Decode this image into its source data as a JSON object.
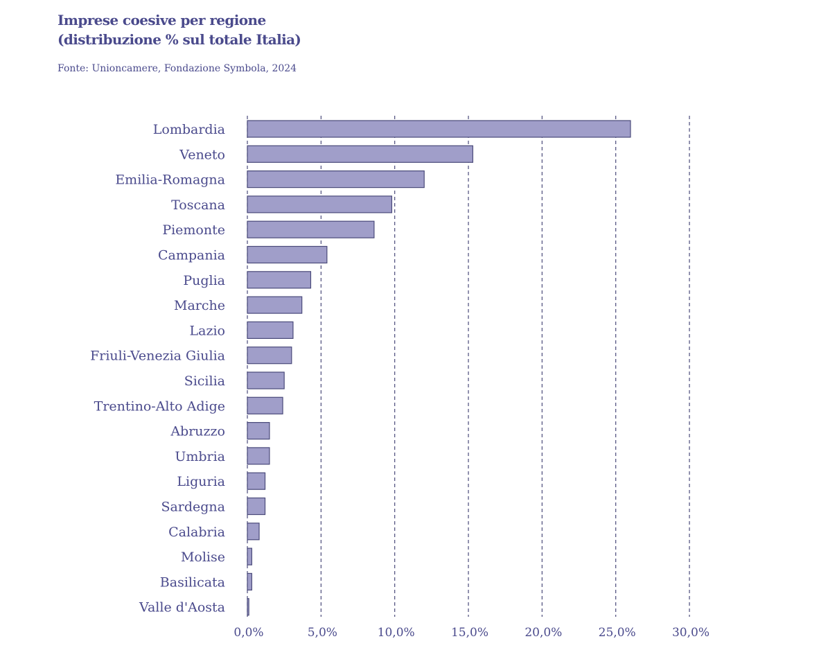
{
  "header": {
    "title_line1": "Imprese coesive per regione",
    "title_line2": "(distribuzione % sul totale Italia)",
    "source": "Fonte: Unioncamere, Fondazione Symbola, 2024"
  },
  "colors": {
    "text": "#4a4a8c",
    "bar_fill": "#a09ec9",
    "bar_stroke": "#4a4a7a",
    "grid": "#4a4a7a"
  },
  "chart_data": {
    "type": "bar",
    "orientation": "horizontal",
    "categories": [
      "Lombardia",
      "Veneto",
      "Emilia-Romagna",
      "Toscana",
      "Piemonte",
      "Campania",
      "Puglia",
      "Marche",
      "Lazio",
      "Friuli-Venezia Giulia",
      "Sicilia",
      "Trentino-Alto Adige",
      "Abruzzo",
      "Umbria",
      "Liguria",
      "Sardegna",
      "Calabria",
      "Molise",
      "Basilicata",
      "Valle d'Aosta"
    ],
    "values": [
      26.0,
      15.3,
      12.0,
      9.8,
      8.6,
      5.4,
      4.3,
      3.7,
      3.1,
      3.0,
      2.5,
      2.4,
      1.5,
      1.5,
      1.2,
      1.2,
      0.8,
      0.3,
      0.3,
      0.1
    ],
    "xlim": [
      0,
      30
    ],
    "xticks": [
      0,
      5,
      10,
      15,
      20,
      25,
      30
    ],
    "xtick_labels": [
      "0,0%",
      "5,0%",
      "10,0%",
      "15,0%",
      "20,0%",
      "25,0%",
      "30,0%"
    ],
    "grid": "vertical dashed",
    "legend": "none"
  }
}
